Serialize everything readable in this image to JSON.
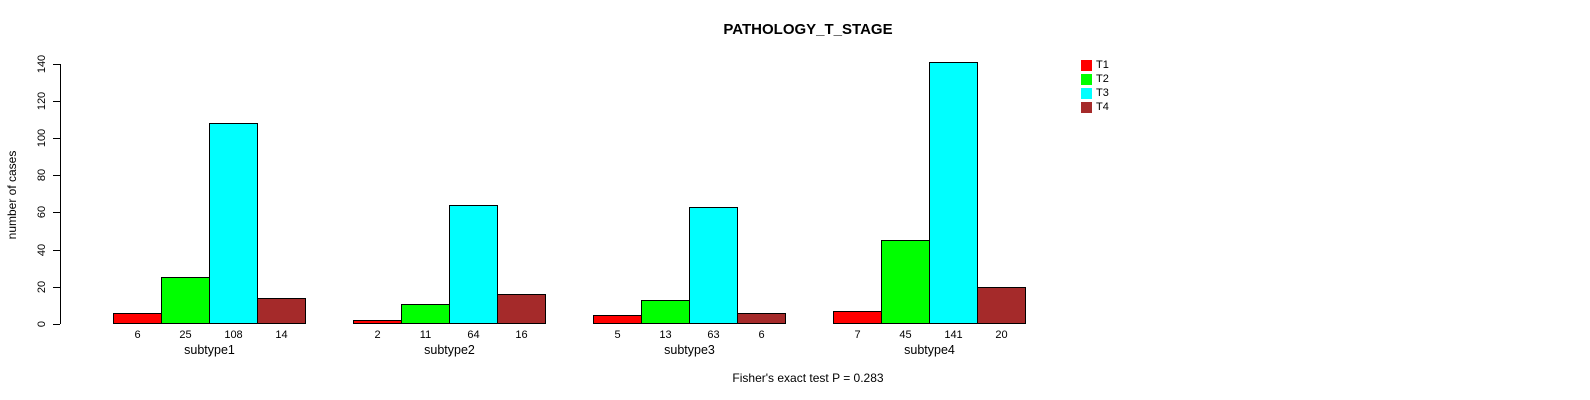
{
  "chart_data": {
    "type": "bar",
    "title": "PATHOLOGY_T_STAGE",
    "categories": [
      "subtype1",
      "subtype2",
      "subtype3",
      "subtype4"
    ],
    "series": [
      {
        "name": "T1",
        "color": "#ff0000",
        "values": [
          6,
          2,
          5,
          7
        ]
      },
      {
        "name": "T2",
        "color": "#00ff00",
        "values": [
          25,
          11,
          13,
          45
        ]
      },
      {
        "name": "T3",
        "color": "#00ffff",
        "values": [
          108,
          64,
          63,
          141
        ]
      },
      {
        "name": "T4",
        "color": "#a52a2a",
        "values": [
          14,
          16,
          6,
          20
        ]
      }
    ],
    "xlabel": "",
    "ylabel": "number of cases",
    "ylim": [
      0,
      140
    ],
    "yticks": [
      0,
      20,
      40,
      60,
      80,
      100,
      120,
      140
    ],
    "bar_value_labels_shown": true,
    "grid": false,
    "legend_position": "right",
    "annotation": "Fisher's exact test P = 0.283"
  }
}
